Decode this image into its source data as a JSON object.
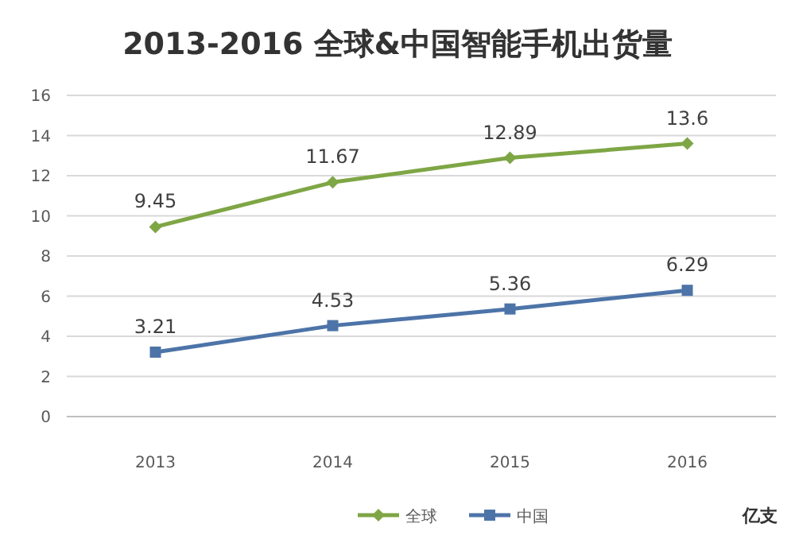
{
  "chart_data": {
    "type": "line",
    "title": "2013-2016 全球&中国智能手机出货量",
    "annotations": [
      "亿支"
    ],
    "categories": [
      "2013",
      "2014",
      "2015",
      "2016"
    ],
    "series": [
      {
        "name": "全球",
        "color": "#7ea645",
        "marker": "diamond",
        "values": [
          9.45,
          11.67,
          12.89,
          13.6
        ]
      },
      {
        "name": "中国",
        "color": "#4d74a8",
        "marker": "square",
        "values": [
          3.21,
          4.53,
          5.36,
          6.29
        ]
      }
    ],
    "ylim": [
      0,
      16
    ],
    "yticks": [
      0,
      2,
      4,
      6,
      8,
      10,
      12,
      14,
      16
    ],
    "grid": "y",
    "legend": "bottom",
    "data_labels": true
  }
}
